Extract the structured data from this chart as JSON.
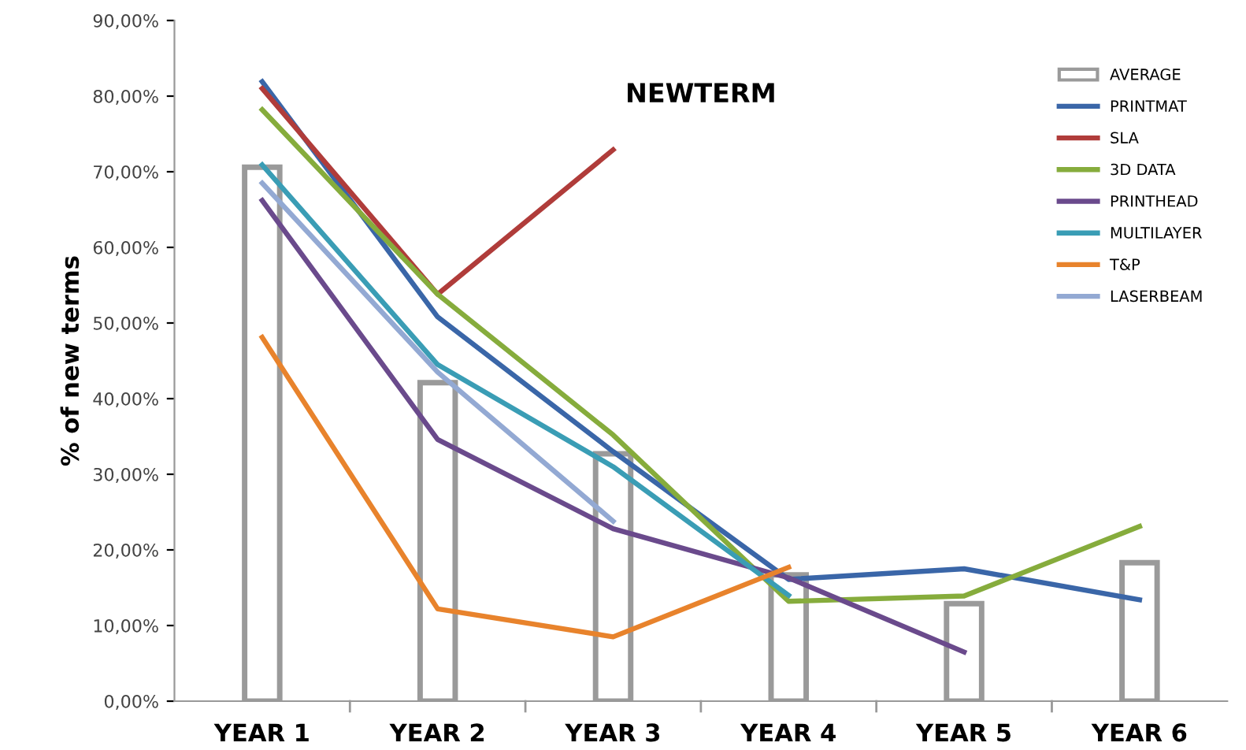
{
  "chart_data": {
    "type": "line",
    "title": "NEWTERM",
    "ylabel": "% of new terms",
    "categories": [
      "YEAR 1",
      "YEAR 2",
      "YEAR 3",
      "YEAR 4",
      "YEAR 5",
      "YEAR 6"
    ],
    "ylim": [
      0,
      90
    ],
    "yticks": [
      {
        "value": 0,
        "label": "0,00%"
      },
      {
        "value": 10,
        "label": "10,00%"
      },
      {
        "value": 20,
        "label": "20,00%"
      },
      {
        "value": 30,
        "label": "30,00%"
      },
      {
        "value": 40,
        "label": "40,00%"
      },
      {
        "value": 50,
        "label": "50,00%"
      },
      {
        "value": 60,
        "label": "60,00%"
      },
      {
        "value": 70,
        "label": "70,00%"
      },
      {
        "value": 80,
        "label": "80,00%"
      },
      {
        "value": 90,
        "label": "90,00%"
      }
    ],
    "grid": false,
    "legend": "top right",
    "marker": "none",
    "line_style": "solid",
    "series": [
      {
        "name": "AVERAGE",
        "type": "bar",
        "color": "#ffffff",
        "values": [
          70.6,
          42.1,
          32.7,
          16.7,
          12.9,
          18.3
        ]
      },
      {
        "name": "PRINTMAT",
        "color": "#3a66a8",
        "values": [
          81.9,
          50.8,
          33.0,
          16.1,
          17.5,
          13.4
        ]
      },
      {
        "name": "SLA",
        "color": "#b03c3a",
        "values": [
          81.0,
          53.8,
          72.9,
          null,
          null,
          null
        ]
      },
      {
        "name": "3D DATA",
        "color": "#86ac3c",
        "values": [
          78.2,
          53.8,
          35.2,
          13.2,
          13.9,
          23.1
        ]
      },
      {
        "name": "PRINTHEAD",
        "color": "#6a4a8c",
        "values": [
          66.2,
          34.6,
          22.8,
          16.3,
          6.5,
          null
        ]
      },
      {
        "name": "MULTILAYER",
        "color": "#3a9db5",
        "values": [
          70.9,
          44.5,
          31.0,
          14.0,
          null,
          null
        ]
      },
      {
        "name": "T&P",
        "color": "#e8832c",
        "values": [
          48.1,
          12.2,
          8.5,
          17.7,
          null,
          null
        ]
      },
      {
        "name": "LASERBEAM",
        "color": "#93a9d3",
        "values": [
          68.5,
          43.5,
          23.8,
          null,
          null,
          null
        ]
      }
    ]
  }
}
